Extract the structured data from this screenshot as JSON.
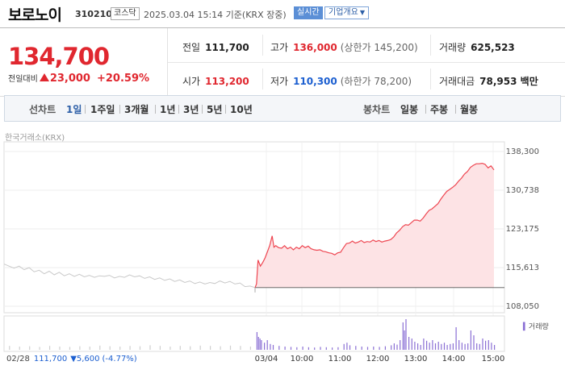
{
  "header": {
    "name": "보로노이",
    "code": "310210",
    "market": "코스닥",
    "time": "2025.03.04 15:14 기준(KRX 장중)",
    "live": "실시간",
    "corp": "기업개요"
  },
  "quote": {
    "price": "134,700",
    "change_label": "전일대비",
    "change": "23,000",
    "change_pct": "+20.59%",
    "prev": {
      "label": "전일",
      "value": "111,700"
    },
    "high": {
      "label": "고가",
      "value": "136,000",
      "sub": "(상한가 145,200)"
    },
    "volume": {
      "label": "거래량",
      "value": "625,523"
    },
    "open": {
      "label": "시가",
      "value": "113,200"
    },
    "low": {
      "label": "저가",
      "value": "110,300",
      "sub": "(하한가 78,200)"
    },
    "amount": {
      "label": "거래대금",
      "value": "78,953 백만"
    }
  },
  "tabs": {
    "line_label": "선차트",
    "line_items": [
      "1일",
      "1주일",
      "3개월",
      "1년",
      "3년",
      "5년",
      "10년"
    ],
    "candle_label": "봉차트",
    "candle_items": [
      "일봉",
      "주봉",
      "월봉"
    ]
  },
  "chart_data": {
    "type": "line",
    "exchange_label": "한국거래소(KRX)",
    "y_ticks": [
      "138,300",
      "130,738",
      "123,175",
      "115,613",
      "108,050"
    ],
    "ylim": [
      108050,
      138300
    ],
    "x_ticks": [
      "03/04",
      "10:00",
      "11:00",
      "12:00",
      "13:00",
      "14:00",
      "15:00"
    ],
    "baseline": 111700,
    "volume_legend": "거래량",
    "prev_day": {
      "date": "02/28",
      "close": "111,700",
      "change": "5,600",
      "change_pct": "(-4.77%)"
    },
    "prev_series": [
      [
        0.0,
        116300
      ],
      [
        0.02,
        115900
      ],
      [
        0.04,
        115500
      ],
      [
        0.06,
        115900
      ],
      [
        0.08,
        115200
      ],
      [
        0.1,
        115600
      ],
      [
        0.12,
        114800
      ],
      [
        0.14,
        115100
      ],
      [
        0.16,
        114400
      ],
      [
        0.18,
        114900
      ],
      [
        0.2,
        114200
      ],
      [
        0.22,
        114700
      ],
      [
        0.24,
        114000
      ],
      [
        0.26,
        114400
      ],
      [
        0.28,
        113900
      ],
      [
        0.3,
        114300
      ],
      [
        0.32,
        113800
      ],
      [
        0.34,
        114100
      ],
      [
        0.36,
        113700
      ],
      [
        0.38,
        114000
      ],
      [
        0.4,
        113900
      ],
      [
        0.42,
        114100
      ],
      [
        0.44,
        113600
      ],
      [
        0.46,
        113900
      ],
      [
        0.48,
        113700
      ],
      [
        0.5,
        114200
      ],
      [
        0.52,
        113800
      ],
      [
        0.54,
        114000
      ],
      [
        0.56,
        113500
      ],
      [
        0.58,
        113800
      ],
      [
        0.6,
        113300
      ],
      [
        0.62,
        113600
      ],
      [
        0.64,
        113100
      ],
      [
        0.66,
        113400
      ],
      [
        0.68,
        112900
      ],
      [
        0.7,
        113200
      ],
      [
        0.72,
        112700
      ],
      [
        0.74,
        113000
      ],
      [
        0.76,
        112500
      ],
      [
        0.78,
        112800
      ],
      [
        0.8,
        112400
      ],
      [
        0.82,
        112700
      ],
      [
        0.84,
        112500
      ],
      [
        0.86,
        113000
      ],
      [
        0.88,
        112600
      ],
      [
        0.9,
        112900
      ],
      [
        0.92,
        112400
      ],
      [
        0.94,
        112600
      ],
      [
        0.96,
        111900
      ],
      [
        0.98,
        112000
      ],
      [
        1.0,
        111700
      ]
    ],
    "today_series": [
      [
        0.0,
        111700
      ],
      [
        0.005,
        112400
      ],
      [
        0.01,
        117100
      ],
      [
        0.018,
        115900
      ],
      [
        0.026,
        116600
      ],
      [
        0.034,
        117500
      ],
      [
        0.042,
        118700
      ],
      [
        0.05,
        120000
      ],
      [
        0.058,
        121800
      ],
      [
        0.064,
        119600
      ],
      [
        0.07,
        119900
      ],
      [
        0.08,
        119500
      ],
      [
        0.09,
        119400
      ],
      [
        0.1,
        119900
      ],
      [
        0.11,
        119300
      ],
      [
        0.12,
        119600
      ],
      [
        0.13,
        119100
      ],
      [
        0.14,
        119600
      ],
      [
        0.15,
        119300
      ],
      [
        0.16,
        119900
      ],
      [
        0.17,
        119500
      ],
      [
        0.18,
        119800
      ],
      [
        0.19,
        119300
      ],
      [
        0.2,
        119100
      ],
      [
        0.21,
        119000
      ],
      [
        0.22,
        119100
      ],
      [
        0.23,
        118800
      ],
      [
        0.24,
        118700
      ],
      [
        0.25,
        118500
      ],
      [
        0.26,
        118400
      ],
      [
        0.27,
        118100
      ],
      [
        0.28,
        118500
      ],
      [
        0.29,
        118600
      ],
      [
        0.3,
        119500
      ],
      [
        0.31,
        120300
      ],
      [
        0.32,
        120400
      ],
      [
        0.33,
        120800
      ],
      [
        0.34,
        120400
      ],
      [
        0.35,
        120600
      ],
      [
        0.36,
        120900
      ],
      [
        0.37,
        120500
      ],
      [
        0.38,
        120700
      ],
      [
        0.39,
        120600
      ],
      [
        0.4,
        121000
      ],
      [
        0.41,
        120700
      ],
      [
        0.42,
        120900
      ],
      [
        0.43,
        120600
      ],
      [
        0.44,
        120800
      ],
      [
        0.45,
        120900
      ],
      [
        0.46,
        121100
      ],
      [
        0.47,
        121600
      ],
      [
        0.48,
        122400
      ],
      [
        0.49,
        122900
      ],
      [
        0.5,
        123600
      ],
      [
        0.51,
        124000
      ],
      [
        0.52,
        123900
      ],
      [
        0.53,
        124400
      ],
      [
        0.54,
        124900
      ],
      [
        0.55,
        124900
      ],
      [
        0.56,
        124700
      ],
      [
        0.57,
        125300
      ],
      [
        0.58,
        126100
      ],
      [
        0.59,
        126800
      ],
      [
        0.6,
        127100
      ],
      [
        0.61,
        127600
      ],
      [
        0.62,
        128100
      ],
      [
        0.63,
        129000
      ],
      [
        0.64,
        129800
      ],
      [
        0.65,
        130500
      ],
      [
        0.66,
        130900
      ],
      [
        0.67,
        131300
      ],
      [
        0.68,
        131800
      ],
      [
        0.69,
        132500
      ],
      [
        0.7,
        133100
      ],
      [
        0.71,
        133900
      ],
      [
        0.72,
        134400
      ],
      [
        0.73,
        135200
      ],
      [
        0.74,
        135600
      ],
      [
        0.75,
        135900
      ],
      [
        0.76,
        135900
      ],
      [
        0.77,
        136000
      ],
      [
        0.78,
        135800
      ],
      [
        0.79,
        135100
      ],
      [
        0.8,
        135500
      ],
      [
        0.81,
        134700
      ]
    ],
    "volume_bars": [
      [
        0.02,
        0.12
      ],
      [
        0.06,
        0.1
      ],
      [
        0.1,
        0.11
      ],
      [
        0.14,
        0.09
      ],
      [
        0.18,
        0.12
      ],
      [
        0.22,
        0.1
      ],
      [
        0.26,
        0.09
      ],
      [
        0.3,
        0.11
      ],
      [
        0.34,
        0.1
      ],
      [
        0.38,
        0.13
      ],
      [
        0.42,
        0.11
      ],
      [
        0.46,
        0.1
      ],
      [
        0.5,
        0.12
      ],
      [
        0.54,
        0.11
      ],
      [
        0.58,
        0.14
      ],
      [
        0.62,
        0.12
      ],
      [
        0.66,
        0.1
      ],
      [
        0.7,
        0.12
      ],
      [
        0.74,
        0.11
      ],
      [
        0.78,
        0.13
      ],
      [
        0.82,
        0.12
      ],
      [
        0.86,
        0.11
      ],
      [
        0.9,
        0.13
      ],
      [
        0.94,
        0.12
      ],
      [
        0.98,
        0.1
      ],
      [
        1.005,
        0.55
      ],
      [
        1.01,
        0.4
      ],
      [
        1.015,
        0.35
      ],
      [
        1.02,
        0.3
      ],
      [
        1.03,
        0.22
      ],
      [
        1.04,
        0.3
      ],
      [
        1.05,
        0.18
      ],
      [
        1.06,
        0.15
      ],
      [
        1.08,
        0.12
      ],
      [
        1.1,
        0.1
      ],
      [
        1.12,
        0.09
      ],
      [
        1.14,
        0.08
      ],
      [
        1.16,
        0.1
      ],
      [
        1.18,
        0.08
      ],
      [
        1.2,
        0.07
      ],
      [
        1.22,
        0.09
      ],
      [
        1.24,
        0.08
      ],
      [
        1.26,
        0.07
      ],
      [
        1.28,
        0.08
      ],
      [
        1.3,
        0.18
      ],
      [
        1.31,
        0.22
      ],
      [
        1.32,
        0.14
      ],
      [
        1.34,
        0.12
      ],
      [
        1.36,
        0.1
      ],
      [
        1.38,
        0.09
      ],
      [
        1.4,
        0.1
      ],
      [
        1.42,
        0.09
      ],
      [
        1.44,
        0.11
      ],
      [
        1.46,
        0.14
      ],
      [
        1.47,
        0.2
      ],
      [
        1.48,
        0.16
      ],
      [
        1.49,
        0.3
      ],
      [
        1.5,
        0.85
      ],
      [
        1.505,
        0.6
      ],
      [
        1.51,
        0.95
      ],
      [
        1.52,
        0.4
      ],
      [
        1.53,
        0.35
      ],
      [
        1.54,
        0.25
      ],
      [
        1.55,
        0.2
      ],
      [
        1.56,
        0.15
      ],
      [
        1.57,
        0.35
      ],
      [
        1.58,
        0.28
      ],
      [
        1.59,
        0.22
      ],
      [
        1.6,
        0.3
      ],
      [
        1.61,
        0.2
      ],
      [
        1.62,
        0.25
      ],
      [
        1.63,
        0.18
      ],
      [
        1.64,
        0.22
      ],
      [
        1.65,
        0.15
      ],
      [
        1.66,
        0.18
      ],
      [
        1.67,
        0.2
      ],
      [
        1.68,
        0.7
      ],
      [
        1.69,
        0.3
      ],
      [
        1.7,
        0.22
      ],
      [
        1.71,
        0.18
      ],
      [
        1.72,
        0.2
      ],
      [
        1.73,
        0.6
      ],
      [
        1.74,
        0.45
      ],
      [
        1.75,
        0.2
      ],
      [
        1.76,
        0.18
      ],
      [
        1.77,
        0.35
      ],
      [
        1.78,
        0.28
      ],
      [
        1.79,
        0.3
      ],
      [
        1.8,
        0.22
      ],
      [
        1.81,
        0.15
      ]
    ]
  }
}
